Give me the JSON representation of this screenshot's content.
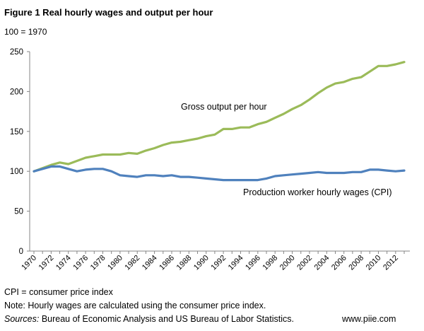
{
  "chart_data": {
    "type": "line",
    "title": "Figure 1 Real hourly wages and output per hour",
    "unit_label": "100 = 1970",
    "xlabel": "",
    "ylabel": "",
    "ylim": [
      0,
      250
    ],
    "yticks": [
      "0",
      "50",
      "100",
      "150",
      "200",
      "250"
    ],
    "xticks": [
      "1970",
      "1972",
      "1974",
      "1976",
      "1978",
      "1980",
      "1982",
      "1984",
      "1986",
      "1988",
      "1990",
      "1992",
      "1994",
      "1996",
      "1998",
      "2000",
      "2002",
      "2004",
      "2006",
      "2008",
      "2010",
      "2012"
    ],
    "x": [
      1970,
      1971,
      1972,
      1973,
      1974,
      1975,
      1976,
      1977,
      1978,
      1979,
      1980,
      1981,
      1982,
      1983,
      1984,
      1985,
      1986,
      1987,
      1988,
      1989,
      1990,
      1991,
      1992,
      1993,
      1994,
      1995,
      1996,
      1997,
      1998,
      1999,
      2000,
      2001,
      2002,
      2003,
      2004,
      2005,
      2006,
      2007,
      2008,
      2009,
      2010,
      2011,
      2012,
      2013
    ],
    "grid": false,
    "legend": "none",
    "series": [
      {
        "name": "Gross output per hour",
        "color": "#9bbb59",
        "values": [
          100,
          104,
          108,
          111,
          109,
          113,
          117,
          119,
          121,
          121,
          121,
          123,
          122,
          126,
          129,
          133,
          136,
          137,
          139,
          141,
          144,
          146,
          153,
          153,
          155,
          155,
          159,
          162,
          167,
          172,
          178,
          183,
          190,
          198,
          205,
          210,
          212,
          216,
          218,
          225,
          232,
          232,
          234,
          237
        ]
      },
      {
        "name": "Production worker hourly wages (CPI)",
        "color": "#4f81bd",
        "values": [
          100,
          103,
          106,
          106,
          103,
          100,
          102,
          103,
          103,
          100,
          95,
          94,
          93,
          95,
          95,
          94,
          95,
          93,
          93,
          92,
          91,
          90,
          89,
          89,
          89,
          89,
          89,
          91,
          94,
          95,
          96,
          97,
          98,
          99,
          98,
          98,
          98,
          99,
          99,
          102,
          102,
          101,
          100,
          101
        ]
      }
    ]
  },
  "footnotes": {
    "cpi": "CPI = consumer price index",
    "note": "Note: Hourly wages are calculated using the consumer price index.",
    "sources_label": "Sources:",
    "sources_text": " Bureau of Economic Analysis and US Bureau of Labor Statistics.",
    "site": "www.piie.com"
  }
}
